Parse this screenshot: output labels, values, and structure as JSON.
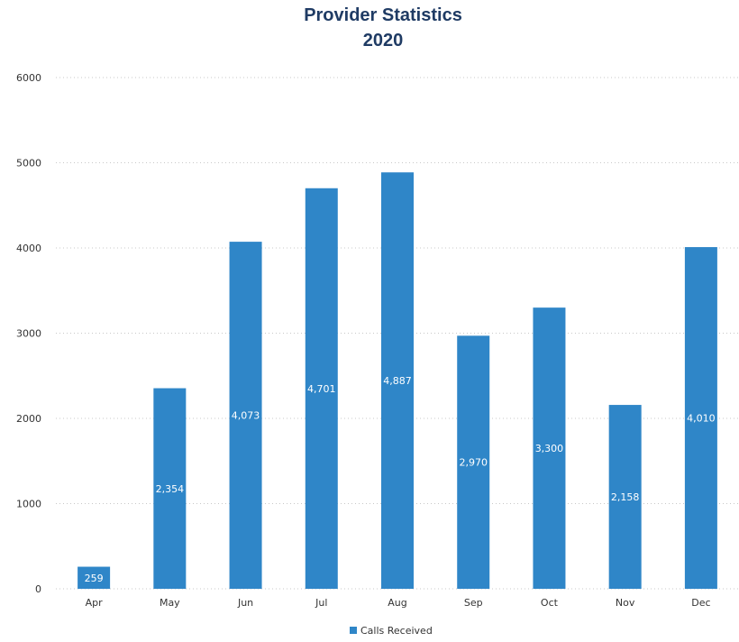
{
  "chart_data": {
    "type": "bar",
    "title": "Provider Statistics",
    "subtitle": "2020",
    "categories": [
      "Apr",
      "May",
      "Jun",
      "Jul",
      "Aug",
      "Sep",
      "Oct",
      "Nov",
      "Dec"
    ],
    "series": [
      {
        "name": "Calls Received",
        "values": [
          259,
          2354,
          4073,
          4701,
          4887,
          2970,
          3300,
          2158,
          4010
        ],
        "data_labels": [
          "259",
          "2,354",
          "4,073",
          "4,701",
          "4,887",
          "2,970",
          "3,300",
          "2,158",
          "4,010"
        ]
      }
    ],
    "ylim": [
      0,
      6000
    ],
    "yticks": [
      0,
      1000,
      2000,
      3000,
      4000,
      5000,
      6000
    ],
    "ytick_labels": [
      "0",
      "1000",
      "2000",
      "3000",
      "4000",
      "5000",
      "6000"
    ],
    "grid": true,
    "legend_position": "bottom",
    "colors": {
      "bar": "#2f86c8",
      "title": "#1f3b64"
    }
  }
}
